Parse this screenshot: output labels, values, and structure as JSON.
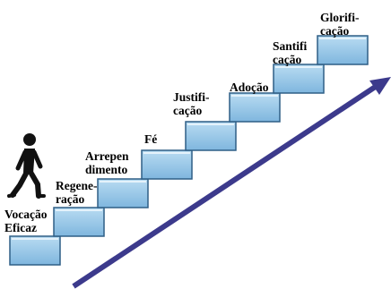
{
  "steps": [
    {
      "line1": "Vocação",
      "line2": "Eficaz"
    },
    {
      "line1": "Regene-",
      "line2": "ração"
    },
    {
      "line1": "Arrepen",
      "line2": "dimento"
    },
    {
      "line1": "Fé",
      "line2": ""
    },
    {
      "line1": "Justifi-",
      "line2": "cação"
    },
    {
      "line1": "Adoção",
      "line2": ""
    },
    {
      "line1": "Santifi",
      "line2": "cação"
    },
    {
      "line1": "Glorifi-",
      "line2": "cação"
    }
  ],
  "colors": {
    "step_front": "#8ec3e6",
    "step_top": "#b9dcf2",
    "step_edge": "#2f5f86",
    "arrow": "#3c3a8c",
    "figure": "#111111"
  },
  "icons": {
    "walker": "walking-person-icon",
    "arrow": "diagonal-arrow-icon"
  }
}
